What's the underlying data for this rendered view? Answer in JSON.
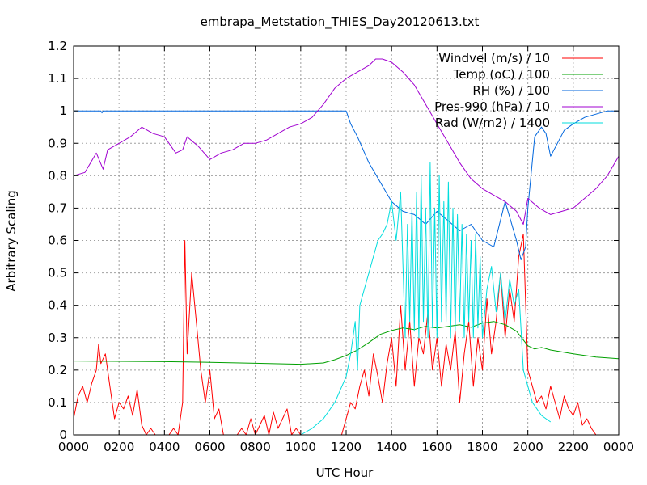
{
  "chart_data": {
    "type": "line",
    "title": "embrapa_Metstation_THIES_Day20120613.txt",
    "xlabel": "UTC Hour",
    "ylabel": "Arbitrary Scaling",
    "xlim": [
      0,
      24
    ],
    "ylim": [
      0,
      1.2
    ],
    "grid": true,
    "legend_position": "top-right",
    "x_ticks": [
      {
        "value": 0,
        "label": "0000"
      },
      {
        "value": 2,
        "label": "0200"
      },
      {
        "value": 4,
        "label": "0400"
      },
      {
        "value": 6,
        "label": "0600"
      },
      {
        "value": 8,
        "label": "0800"
      },
      {
        "value": 10,
        "label": "1000"
      },
      {
        "value": 12,
        "label": "1200"
      },
      {
        "value": 14,
        "label": "1400"
      },
      {
        "value": 16,
        "label": "1600"
      },
      {
        "value": 18,
        "label": "1800"
      },
      {
        "value": 20,
        "label": "2000"
      },
      {
        "value": 22,
        "label": "2200"
      },
      {
        "value": 24,
        "label": "0000"
      }
    ],
    "y_ticks": [
      {
        "value": 0,
        "label": "0"
      },
      {
        "value": 0.1,
        "label": "0.1"
      },
      {
        "value": 0.2,
        "label": "0.2"
      },
      {
        "value": 0.3,
        "label": "0.3"
      },
      {
        "value": 0.4,
        "label": "0.4"
      },
      {
        "value": 0.5,
        "label": "0.5"
      },
      {
        "value": 0.6,
        "label": "0.6"
      },
      {
        "value": 0.7,
        "label": "0.7"
      },
      {
        "value": 0.8,
        "label": "0.8"
      },
      {
        "value": 0.9,
        "label": "0.9"
      },
      {
        "value": 1.0,
        "label": "1"
      },
      {
        "value": 1.1,
        "label": "1.1"
      },
      {
        "value": 1.2,
        "label": "1.2"
      }
    ],
    "series": [
      {
        "name": "Windvel (m/s) / 10",
        "color": "#ff0000",
        "x": [
          0,
          0.2,
          0.4,
          0.6,
          0.8,
          1.0,
          1.1,
          1.2,
          1.4,
          1.6,
          1.8,
          2.0,
          2.2,
          2.4,
          2.6,
          2.8,
          3.0,
          3.2,
          3.4,
          3.6,
          3.8,
          4.0,
          4.2,
          4.4,
          4.6,
          4.8,
          4.9,
          5.0,
          5.2,
          5.4,
          5.6,
          5.8,
          6.0,
          6.2,
          6.4,
          6.6,
          6.8,
          7.0,
          7.2,
          7.4,
          7.6,
          7.8,
          8.0,
          8.2,
          8.4,
          8.6,
          8.8,
          9.0,
          9.2,
          9.4,
          9.6,
          9.8,
          10.0,
          10.2,
          10.4,
          10.6,
          10.8,
          11.0,
          11.2,
          11.4,
          11.6,
          11.8,
          12.0,
          12.2,
          12.4,
          12.6,
          12.8,
          13.0,
          13.2,
          13.4,
          13.6,
          13.8,
          14.0,
          14.2,
          14.4,
          14.6,
          14.8,
          15.0,
          15.2,
          15.4,
          15.6,
          15.8,
          16.0,
          16.2,
          16.4,
          16.6,
          16.8,
          17.0,
          17.2,
          17.4,
          17.6,
          17.8,
          18.0,
          18.2,
          18.4,
          18.6,
          18.8,
          19.0,
          19.2,
          19.4,
          19.6,
          19.8,
          20.0,
          20.2,
          20.4,
          20.6,
          20.8,
          21.0,
          21.2,
          21.4,
          21.6,
          21.8,
          22.0,
          22.2,
          22.4,
          22.6,
          22.8,
          23.0
        ],
        "y": [
          0.05,
          0.12,
          0.15,
          0.1,
          0.16,
          0.2,
          0.28,
          0.22,
          0.25,
          0.15,
          0.05,
          0.1,
          0.08,
          0.12,
          0.06,
          0.14,
          0.03,
          0.0,
          0.02,
          0.0,
          0.0,
          0.0,
          0.0,
          0.02,
          0.0,
          0.1,
          0.6,
          0.25,
          0.5,
          0.35,
          0.2,
          0.1,
          0.2,
          0.05,
          0.08,
          0.0,
          0.0,
          0.0,
          0.0,
          0.02,
          0.0,
          0.05,
          0.0,
          0.03,
          0.06,
          0.0,
          0.07,
          0.02,
          0.05,
          0.08,
          0.0,
          0.02,
          0.0,
          0.0,
          0.0,
          0.0,
          0.0,
          0.0,
          0.0,
          0.0,
          0.0,
          0.0,
          0.05,
          0.1,
          0.08,
          0.15,
          0.2,
          0.12,
          0.25,
          0.18,
          0.1,
          0.22,
          0.3,
          0.15,
          0.4,
          0.2,
          0.35,
          0.15,
          0.3,
          0.25,
          0.38,
          0.2,
          0.3,
          0.15,
          0.28,
          0.2,
          0.32,
          0.1,
          0.25,
          0.35,
          0.15,
          0.3,
          0.2,
          0.42,
          0.25,
          0.35,
          0.5,
          0.3,
          0.45,
          0.35,
          0.55,
          0.62,
          0.2,
          0.15,
          0.1,
          0.12,
          0.08,
          0.15,
          0.1,
          0.05,
          0.12,
          0.08,
          0.06,
          0.1,
          0.03,
          0.05,
          0.02,
          0.0
        ]
      },
      {
        "name": "Temp (oC) / 100",
        "color": "#00a000",
        "x": [
          0,
          2,
          4,
          6,
          8,
          10,
          11,
          11.5,
          12,
          12.5,
          13,
          13.5,
          14,
          14.5,
          15,
          15.5,
          16,
          16.5,
          17,
          17.5,
          18,
          18.5,
          19,
          19.5,
          20,
          20.3,
          20.6,
          21,
          22,
          23,
          24
        ],
        "y": [
          0.228,
          0.227,
          0.226,
          0.224,
          0.221,
          0.218,
          0.222,
          0.232,
          0.245,
          0.262,
          0.285,
          0.31,
          0.322,
          0.33,
          0.325,
          0.335,
          0.33,
          0.335,
          0.34,
          0.332,
          0.345,
          0.35,
          0.34,
          0.32,
          0.275,
          0.265,
          0.27,
          0.262,
          0.25,
          0.24,
          0.235
        ]
      },
      {
        "name": "RH (%) / 100",
        "color": "#0066dd",
        "x": [
          0,
          1.2,
          1.25,
          1.3,
          4,
          8,
          11,
          12.0,
          12.2,
          12.5,
          13,
          13.5,
          14,
          14.5,
          15,
          15.5,
          16,
          16.5,
          17,
          17.5,
          18,
          18.5,
          19,
          19.5,
          19.7,
          19.9,
          20.0,
          20.3,
          20.6,
          20.8,
          21.0,
          21.3,
          21.6,
          22,
          22.5,
          23,
          23.5,
          24
        ],
        "y": [
          1.0,
          1.0,
          0.994,
          1.0,
          1.0,
          1.0,
          1.0,
          1.0,
          0.96,
          0.92,
          0.84,
          0.78,
          0.72,
          0.69,
          0.68,
          0.65,
          0.69,
          0.66,
          0.63,
          0.65,
          0.6,
          0.58,
          0.72,
          0.6,
          0.54,
          0.58,
          0.7,
          0.92,
          0.95,
          0.93,
          0.86,
          0.9,
          0.94,
          0.96,
          0.98,
          0.99,
          1.0,
          1.0
        ]
      },
      {
        "name": "Pres-990 (hPa) / 10",
        "color": "#a000d0",
        "x": [
          0,
          0.5,
          1.0,
          1.3,
          1.5,
          2.0,
          2.5,
          3.0,
          3.5,
          4.0,
          4.5,
          4.8,
          5.0,
          5.5,
          6.0,
          6.5,
          7.0,
          7.5,
          8.0,
          8.5,
          9.0,
          9.5,
          10.0,
          10.5,
          11.0,
          11.5,
          12.0,
          12.5,
          13.0,
          13.3,
          13.6,
          14.0,
          14.5,
          15.0,
          15.5,
          16.0,
          16.5,
          17.0,
          17.5,
          18.0,
          18.5,
          19.0,
          19.5,
          19.8,
          20.0,
          20.5,
          21.0,
          21.5,
          22.0,
          22.5,
          23.0,
          23.5,
          24.0
        ],
        "y": [
          0.8,
          0.81,
          0.87,
          0.82,
          0.88,
          0.9,
          0.92,
          0.95,
          0.93,
          0.92,
          0.87,
          0.88,
          0.92,
          0.89,
          0.85,
          0.87,
          0.88,
          0.9,
          0.9,
          0.91,
          0.93,
          0.95,
          0.96,
          0.98,
          1.02,
          1.07,
          1.1,
          1.12,
          1.14,
          1.16,
          1.16,
          1.15,
          1.12,
          1.08,
          1.02,
          0.96,
          0.9,
          0.84,
          0.79,
          0.76,
          0.74,
          0.72,
          0.69,
          0.65,
          0.73,
          0.7,
          0.68,
          0.69,
          0.7,
          0.73,
          0.76,
          0.8,
          0.86
        ]
      },
      {
        "name": "Rad (W/m2) / 1400",
        "color": "#00dddd",
        "x": [
          10.0,
          10.5,
          11.0,
          11.5,
          12.0,
          12.2,
          12.4,
          12.5,
          12.6,
          12.8,
          13.0,
          13.2,
          13.4,
          13.6,
          13.8,
          14.0,
          14.2,
          14.4,
          14.6,
          14.7,
          14.8,
          14.9,
          15.0,
          15.1,
          15.2,
          15.3,
          15.4,
          15.5,
          15.6,
          15.7,
          15.8,
          15.9,
          16.0,
          16.1,
          16.2,
          16.3,
          16.4,
          16.5,
          16.6,
          16.7,
          16.8,
          16.9,
          17.0,
          17.1,
          17.2,
          17.3,
          17.4,
          17.5,
          17.6,
          17.7,
          17.8,
          17.9,
          18.0,
          18.2,
          18.4,
          18.6,
          18.8,
          19.0,
          19.2,
          19.4,
          19.6,
          19.8,
          20.0,
          20.2,
          20.4,
          20.6,
          20.8,
          21.0
        ],
        "y": [
          0.0,
          0.02,
          0.05,
          0.1,
          0.18,
          0.25,
          0.35,
          0.2,
          0.4,
          0.45,
          0.5,
          0.55,
          0.6,
          0.62,
          0.65,
          0.72,
          0.6,
          0.75,
          0.3,
          0.65,
          0.35,
          0.7,
          0.32,
          0.75,
          0.3,
          0.8,
          0.35,
          0.7,
          0.3,
          0.84,
          0.33,
          0.7,
          0.3,
          0.8,
          0.35,
          0.72,
          0.35,
          0.78,
          0.3,
          0.7,
          0.32,
          0.68,
          0.35,
          0.65,
          0.3,
          0.62,
          0.35,
          0.6,
          0.3,
          0.62,
          0.33,
          0.55,
          0.3,
          0.45,
          0.52,
          0.38,
          0.5,
          0.35,
          0.48,
          0.4,
          0.45,
          0.2,
          0.15,
          0.1,
          0.08,
          0.06,
          0.05,
          0.04
        ]
      }
    ]
  }
}
